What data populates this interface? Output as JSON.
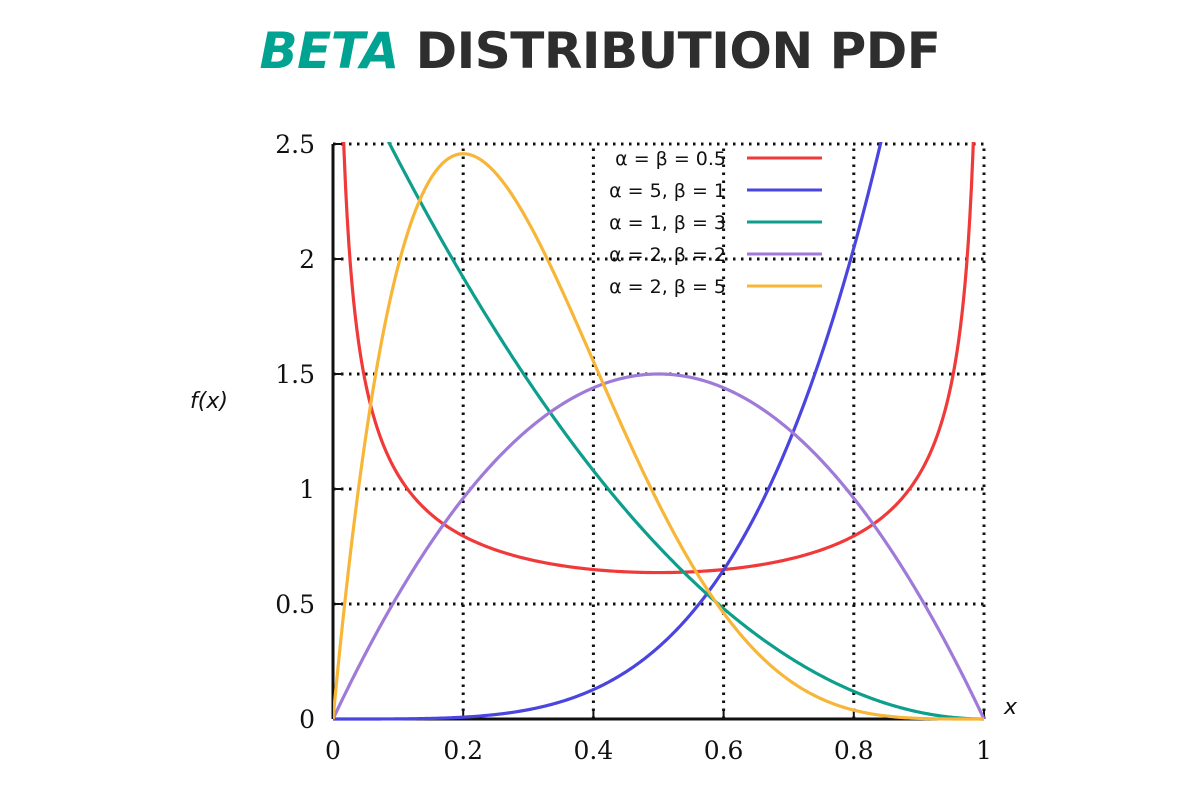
{
  "title": {
    "accent": "BETA",
    "rest": "DISTRIBUTION PDF",
    "accent_color": "#00a392",
    "text_color": "#2e2e2e"
  },
  "chart_data": {
    "type": "line",
    "title": "BETA DISTRIBUTION PDF",
    "xlabel": "x",
    "ylabel": "f(x)",
    "xlim": [
      0,
      1
    ],
    "ylim": [
      0,
      2.5
    ],
    "xticks": [
      "0",
      "0.2",
      "0.4",
      "0.6",
      "0.8",
      "1"
    ],
    "yticks": [
      "0",
      "0.5",
      "1",
      "1.5",
      "2",
      "2.5"
    ],
    "grid": true,
    "grid_style": "dotted",
    "legend_position": "top-right",
    "series": [
      {
        "name": "α = β = 0.5",
        "alpha": 0.5,
        "beta": 0.5,
        "color": "#f03a3a",
        "x": [
          0.01,
          0.05,
          0.1,
          0.2,
          0.3,
          0.4,
          0.5,
          0.6,
          0.7,
          0.8,
          0.9,
          0.95,
          0.99
        ],
        "values": [
          3.2,
          1.46,
          1.06,
          0.8,
          0.69,
          0.65,
          0.64,
          0.65,
          0.69,
          0.8,
          1.06,
          1.46,
          3.2
        ]
      },
      {
        "name": "α = 5, β = 1",
        "alpha": 5,
        "beta": 1,
        "color": "#4a45e0",
        "x": [
          0,
          0.2,
          0.4,
          0.5,
          0.6,
          0.7,
          0.8,
          0.9
        ],
        "values": [
          0,
          0.008,
          0.128,
          0.3125,
          0.648,
          1.2005,
          2.048,
          3.28
        ]
      },
      {
        "name": "α = 1, β = 3",
        "alpha": 1,
        "beta": 3,
        "color": "#0e9e8c",
        "x": [
          0,
          0.1,
          0.2,
          0.3,
          0.4,
          0.5,
          0.6,
          0.7,
          0.8,
          0.9,
          1
        ],
        "values": [
          3,
          2.43,
          1.92,
          1.47,
          1.08,
          0.75,
          0.48,
          0.27,
          0.12,
          0.03,
          0
        ]
      },
      {
        "name": "α = 2, β = 2",
        "alpha": 2,
        "beta": 2,
        "color": "#9f7ad8",
        "x": [
          0,
          0.1,
          0.2,
          0.3,
          0.4,
          0.5,
          0.6,
          0.7,
          0.8,
          0.9,
          1
        ],
        "values": [
          0,
          0.54,
          0.96,
          1.26,
          1.44,
          1.5,
          1.44,
          1.26,
          0.96,
          0.54,
          0
        ]
      },
      {
        "name": "α = 2, β = 5",
        "alpha": 2,
        "beta": 5,
        "color": "#f8b638",
        "x": [
          0,
          0.1,
          0.2,
          0.3,
          0.4,
          0.5,
          0.6,
          0.7,
          0.8,
          0.9,
          1
        ],
        "values": [
          0,
          1.968,
          2.458,
          2.161,
          1.555,
          0.9375,
          0.4608,
          0.1701,
          0.0384,
          0.0027,
          0
        ]
      }
    ]
  }
}
